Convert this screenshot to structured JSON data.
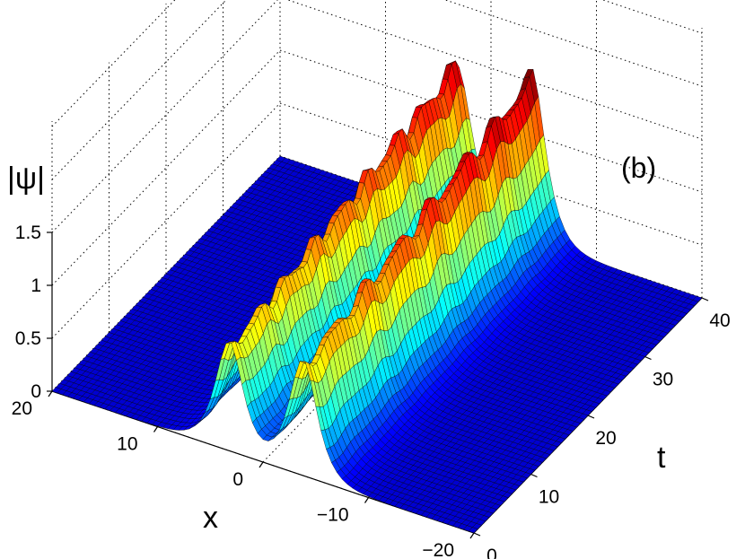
{
  "chart_data": {
    "type": "surface3d",
    "panel_label": "(b)",
    "zlabel": "|ψ|",
    "xlabel": "x",
    "tlabel": "t",
    "x_range": [
      -20,
      20
    ],
    "t_range": [
      0,
      40
    ],
    "z_range": [
      0,
      1.5
    ],
    "x_ticks": [
      "−20",
      "−10",
      "0",
      "10",
      "20"
    ],
    "x_tick_values": [
      -20,
      -10,
      0,
      10,
      20
    ],
    "t_ticks": [
      "0",
      "10",
      "20",
      "30",
      "40"
    ],
    "t_tick_values": [
      0,
      10,
      20,
      30,
      40
    ],
    "z_ticks": [
      "0",
      "0.5",
      "1",
      "1.5"
    ],
    "z_tick_values": [
      0,
      0.5,
      1,
      1.5
    ],
    "grid": true,
    "colormap": "jet",
    "peaks": [
      {
        "x_center": 3.2,
        "amplitude": 0.95
      },
      {
        "x_center": -3.8,
        "amplitude": 1.02
      }
    ],
    "peak_max_t40": 1.55
  }
}
